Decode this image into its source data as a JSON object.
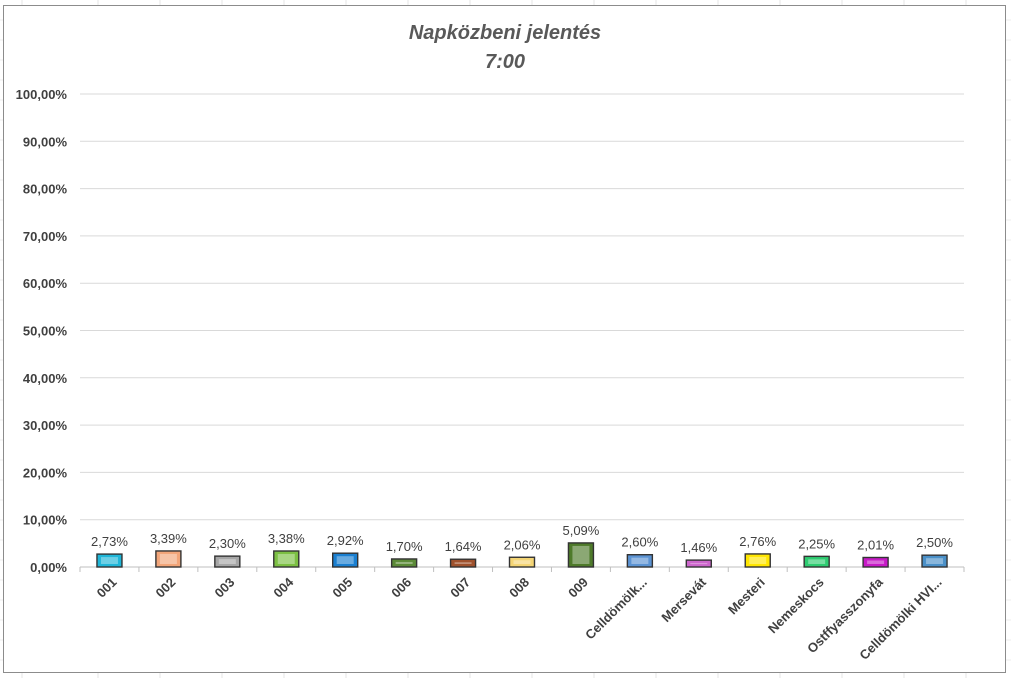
{
  "chart_data": {
    "type": "bar",
    "title": [
      "Napközbeni jelentés",
      "7:00"
    ],
    "xlabel": "",
    "ylabel": "",
    "ylim": [
      0,
      100
    ],
    "y_ticks": [
      "0,00%",
      "10,00%",
      "20,00%",
      "30,00%",
      "40,00%",
      "50,00%",
      "60,00%",
      "70,00%",
      "80,00%",
      "90,00%",
      "100,00%"
    ],
    "categories": [
      "001",
      "002",
      "003",
      "004",
      "005",
      "006",
      "007",
      "008",
      "009",
      "Celldömölk...",
      "Mersevát",
      "Mesteri",
      "Nemeskocs",
      "Ostffyasszonyfa",
      "Celldömölki HVI..."
    ],
    "values": [
      2.73,
      3.39,
      2.3,
      3.38,
      2.92,
      1.7,
      1.64,
      2.06,
      5.09,
      2.6,
      1.46,
      2.76,
      2.25,
      2.01,
      2.5
    ],
    "data_labels": [
      "2,73%",
      "3,39%",
      "2,30%",
      "3,38%",
      "2,92%",
      "1,70%",
      "1,64%",
      "2,06%",
      "5,09%",
      "2,60%",
      "1,46%",
      "2,76%",
      "2,25%",
      "2,01%",
      "2,50%"
    ],
    "colors": [
      "#1fb6d8",
      "#f2a579",
      "#a6a6a6",
      "#7cc043",
      "#1a7fd0",
      "#5b8a37",
      "#a0522d",
      "#f4d575",
      "#4e7a2a",
      "#5b93d3",
      "#cc66cc",
      "#ffe600",
      "#2ecc71",
      "#c71ac7",
      "#4a90c8"
    ],
    "grid": true,
    "legend": "none"
  }
}
